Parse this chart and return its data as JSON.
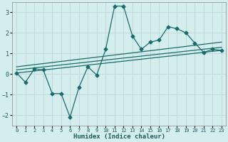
{
  "xlabel": "Humidex (Indice chaleur)",
  "bg_color": "#d4eeee",
  "grid_color": "#c2dada",
  "line_color": "#1a6b6b",
  "xlim": [
    -0.5,
    23.5
  ],
  "ylim": [
    -2.5,
    3.5
  ],
  "yticks": [
    -2,
    -1,
    0,
    1,
    2,
    3
  ],
  "xticks": [
    0,
    1,
    2,
    3,
    4,
    5,
    6,
    7,
    8,
    9,
    10,
    11,
    12,
    13,
    14,
    15,
    16,
    17,
    18,
    19,
    20,
    21,
    22,
    23
  ],
  "series1_x": [
    0,
    1,
    2,
    3,
    4,
    5,
    6,
    7,
    8,
    9,
    10,
    11,
    12,
    13,
    14,
    15,
    16,
    17,
    18,
    19,
    20,
    21,
    22,
    23
  ],
  "series1_y": [
    0.05,
    -0.4,
    0.25,
    0.2,
    -0.95,
    -0.95,
    -2.1,
    -0.65,
    0.35,
    -0.05,
    1.2,
    3.3,
    3.3,
    1.85,
    1.2,
    1.55,
    1.65,
    2.3,
    2.2,
    2.0,
    1.5,
    1.05,
    1.2,
    1.15
  ],
  "series2_x": [
    0,
    23
  ],
  "series2_y": [
    0.05,
    1.15
  ],
  "series3_x": [
    0,
    23
  ],
  "series3_y": [
    0.2,
    1.3
  ],
  "series4_x": [
    0,
    23
  ],
  "series4_y": [
    0.35,
    1.55
  ]
}
